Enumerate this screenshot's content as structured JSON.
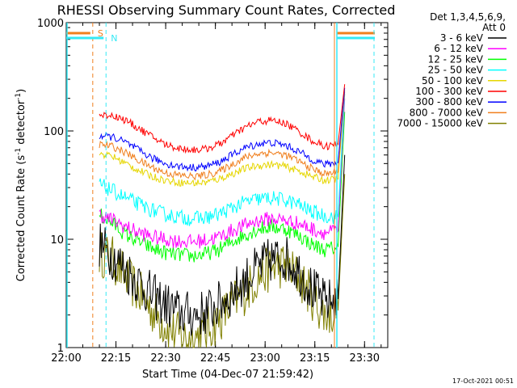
{
  "chart_data": {
    "type": "line",
    "title": "RHESSI Observing Summary Count Rates, Corrected",
    "xlabel": "Start Time (04-Dec-07 21:59:42)",
    "ylabel_main": "Corrected Count Rate (s",
    "ylabel_sup1": "-1",
    "ylabel_mid": " detector",
    "ylabel_sup2": "-1",
    "ylabel_end": ")",
    "yscale": "log",
    "ylim": [
      1,
      1000
    ],
    "xlim": [
      "22:00",
      "23:37"
    ],
    "x_ticks": [
      "22:00",
      "22:15",
      "22:30",
      "22:45",
      "23:00",
      "23:15",
      "23:30"
    ],
    "y_ticks": [
      "1",
      "10",
      "100",
      "1000"
    ],
    "legend_header_1": "Det 1,3,4,5,6,9,",
    "legend_header_2": "Att 0",
    "legend_position": "top-right",
    "footer_timestamp": "17-Oct-2021 00:51",
    "markers": [
      {
        "label": "S",
        "time": "22:08",
        "color": "#f07f1d"
      },
      {
        "label": "N",
        "time": "22:12",
        "color": "#35e9f5"
      }
    ],
    "series": [
      {
        "name": "3 - 6 keV",
        "color": "#000000",
        "values": [
          {
            "x": "22:10",
            "y": 9
          },
          {
            "x": "22:14",
            "y": 7
          },
          {
            "x": "22:18",
            "y": 5.2
          },
          {
            "x": "22:22",
            "y": 4
          },
          {
            "x": "22:26",
            "y": 3
          },
          {
            "x": "22:30",
            "y": 2.5
          },
          {
            "x": "22:34",
            "y": 2.1
          },
          {
            "x": "22:38",
            "y": 2
          },
          {
            "x": "22:42",
            "y": 2.1
          },
          {
            "x": "22:46",
            "y": 2.5
          },
          {
            "x": "22:50",
            "y": 3.2
          },
          {
            "x": "22:54",
            "y": 4.2
          },
          {
            "x": "22:58",
            "y": 5.5
          },
          {
            "x": "23:02",
            "y": 6.5
          },
          {
            "x": "23:06",
            "y": 6.8
          },
          {
            "x": "23:10",
            "y": 5.2
          },
          {
            "x": "23:14",
            "y": 3.5
          },
          {
            "x": "23:18",
            "y": 2.6
          },
          {
            "x": "23:22",
            "y": 2.8
          },
          {
            "x": "23:24",
            "y": 60
          }
        ]
      },
      {
        "name": "6 - 12 keV",
        "color": "#ff00ff",
        "values": [
          {
            "x": "22:10",
            "y": 17
          },
          {
            "x": "22:14",
            "y": 15
          },
          {
            "x": "22:18",
            "y": 13
          },
          {
            "x": "22:22",
            "y": 11.5
          },
          {
            "x": "22:26",
            "y": 10.5
          },
          {
            "x": "22:30",
            "y": 10
          },
          {
            "x": "22:34",
            "y": 9.6
          },
          {
            "x": "22:38",
            "y": 9.5
          },
          {
            "x": "22:42",
            "y": 9.8
          },
          {
            "x": "22:46",
            "y": 10.5
          },
          {
            "x": "22:50",
            "y": 12
          },
          {
            "x": "22:54",
            "y": 13.5
          },
          {
            "x": "22:58",
            "y": 15
          },
          {
            "x": "23:02",
            "y": 15.5
          },
          {
            "x": "23:06",
            "y": 15
          },
          {
            "x": "23:10",
            "y": 14
          },
          {
            "x": "23:14",
            "y": 12.5
          },
          {
            "x": "23:18",
            "y": 11.5
          },
          {
            "x": "23:22",
            "y": 12
          },
          {
            "x": "23:24",
            "y": 200
          }
        ]
      },
      {
        "name": "12 - 25 keV",
        "color": "#00ff00",
        "values": [
          {
            "x": "22:10",
            "y": 17
          },
          {
            "x": "22:14",
            "y": 14
          },
          {
            "x": "22:18",
            "y": 11
          },
          {
            "x": "22:22",
            "y": 9.5
          },
          {
            "x": "22:26",
            "y": 8.2
          },
          {
            "x": "22:30",
            "y": 7.5
          },
          {
            "x": "22:34",
            "y": 7.2
          },
          {
            "x": "22:38",
            "y": 7
          },
          {
            "x": "22:42",
            "y": 7.3
          },
          {
            "x": "22:46",
            "y": 8
          },
          {
            "x": "22:50",
            "y": 9.5
          },
          {
            "x": "22:54",
            "y": 11
          },
          {
            "x": "22:58",
            "y": 12.5
          },
          {
            "x": "23:02",
            "y": 13
          },
          {
            "x": "23:06",
            "y": 12.5
          },
          {
            "x": "23:10",
            "y": 11
          },
          {
            "x": "23:14",
            "y": 9
          },
          {
            "x": "23:18",
            "y": 8
          },
          {
            "x": "23:22",
            "y": 8.5
          },
          {
            "x": "23:24",
            "y": 150
          }
        ]
      },
      {
        "name": "25 - 50 keV",
        "color": "#00ffff",
        "values": [
          {
            "x": "22:10",
            "y": 32
          },
          {
            "x": "22:14",
            "y": 28
          },
          {
            "x": "22:18",
            "y": 24
          },
          {
            "x": "22:22",
            "y": 21
          },
          {
            "x": "22:26",
            "y": 18.5
          },
          {
            "x": "22:30",
            "y": 17
          },
          {
            "x": "22:34",
            "y": 16
          },
          {
            "x": "22:38",
            "y": 15.5
          },
          {
            "x": "22:42",
            "y": 15.8
          },
          {
            "x": "22:46",
            "y": 17
          },
          {
            "x": "22:50",
            "y": 19.5
          },
          {
            "x": "22:54",
            "y": 22
          },
          {
            "x": "22:58",
            "y": 23.5
          },
          {
            "x": "23:02",
            "y": 24
          },
          {
            "x": "23:06",
            "y": 23
          },
          {
            "x": "23:10",
            "y": 21
          },
          {
            "x": "23:14",
            "y": 18
          },
          {
            "x": "23:18",
            "y": 16.5
          },
          {
            "x": "23:22",
            "y": 16
          },
          {
            "x": "23:24",
            "y": 220
          }
        ]
      },
      {
        "name": "50 - 100 keV",
        "color": "#e6d600",
        "values": [
          {
            "x": "22:10",
            "y": 62
          },
          {
            "x": "22:14",
            "y": 58
          },
          {
            "x": "22:18",
            "y": 50
          },
          {
            "x": "22:22",
            "y": 43
          },
          {
            "x": "22:26",
            "y": 38
          },
          {
            "x": "22:30",
            "y": 35
          },
          {
            "x": "22:34",
            "y": 33.5
          },
          {
            "x": "22:38",
            "y": 33
          },
          {
            "x": "22:42",
            "y": 33.5
          },
          {
            "x": "22:46",
            "y": 36
          },
          {
            "x": "22:50",
            "y": 40
          },
          {
            "x": "22:54",
            "y": 45
          },
          {
            "x": "22:58",
            "y": 48
          },
          {
            "x": "23:02",
            "y": 49
          },
          {
            "x": "23:06",
            "y": 47
          },
          {
            "x": "23:10",
            "y": 43
          },
          {
            "x": "23:14",
            "y": 38
          },
          {
            "x": "23:18",
            "y": 35
          },
          {
            "x": "23:22",
            "y": 36
          },
          {
            "x": "23:24",
            "y": 240
          }
        ]
      },
      {
        "name": "100 - 300 keV",
        "color": "#ff0000",
        "values": [
          {
            "x": "22:10",
            "y": 140
          },
          {
            "x": "22:14",
            "y": 140
          },
          {
            "x": "22:18",
            "y": 125
          },
          {
            "x": "22:22",
            "y": 105
          },
          {
            "x": "22:26",
            "y": 88
          },
          {
            "x": "22:30",
            "y": 75
          },
          {
            "x": "22:34",
            "y": 69
          },
          {
            "x": "22:38",
            "y": 67
          },
          {
            "x": "22:42",
            "y": 68
          },
          {
            "x": "22:46",
            "y": 75
          },
          {
            "x": "22:50",
            "y": 90
          },
          {
            "x": "22:54",
            "y": 108
          },
          {
            "x": "22:58",
            "y": 122
          },
          {
            "x": "23:02",
            "y": 125
          },
          {
            "x": "23:06",
            "y": 118
          },
          {
            "x": "23:10",
            "y": 100
          },
          {
            "x": "23:14",
            "y": 82
          },
          {
            "x": "23:18",
            "y": 72
          },
          {
            "x": "23:22",
            "y": 75
          },
          {
            "x": "23:24",
            "y": 270
          }
        ]
      },
      {
        "name": "300 - 800 keV",
        "color": "#0000ff",
        "values": [
          {
            "x": "22:10",
            "y": 90
          },
          {
            "x": "22:14",
            "y": 88
          },
          {
            "x": "22:18",
            "y": 78
          },
          {
            "x": "22:22",
            "y": 66
          },
          {
            "x": "22:26",
            "y": 56
          },
          {
            "x": "22:30",
            "y": 50
          },
          {
            "x": "22:34",
            "y": 47
          },
          {
            "x": "22:38",
            "y": 46
          },
          {
            "x": "22:42",
            "y": 47
          },
          {
            "x": "22:46",
            "y": 51
          },
          {
            "x": "22:50",
            "y": 60
          },
          {
            "x": "22:54",
            "y": 70
          },
          {
            "x": "22:58",
            "y": 76
          },
          {
            "x": "23:02",
            "y": 78
          },
          {
            "x": "23:06",
            "y": 74
          },
          {
            "x": "23:10",
            "y": 65
          },
          {
            "x": "23:14",
            "y": 55
          },
          {
            "x": "23:18",
            "y": 49
          },
          {
            "x": "23:22",
            "y": 51
          },
          {
            "x": "23:24",
            "y": 250
          }
        ]
      },
      {
        "name": "800 - 7000 keV",
        "color": "#f07f1d",
        "values": [
          {
            "x": "22:10",
            "y": 75
          },
          {
            "x": "22:14",
            "y": 72
          },
          {
            "x": "22:18",
            "y": 63
          },
          {
            "x": "22:22",
            "y": 53
          },
          {
            "x": "22:26",
            "y": 46
          },
          {
            "x": "22:30",
            "y": 41
          },
          {
            "x": "22:34",
            "y": 39
          },
          {
            "x": "22:38",
            "y": 38
          },
          {
            "x": "22:42",
            "y": 39
          },
          {
            "x": "22:46",
            "y": 42
          },
          {
            "x": "22:50",
            "y": 49
          },
          {
            "x": "22:54",
            "y": 57
          },
          {
            "x": "22:58",
            "y": 62
          },
          {
            "x": "23:02",
            "y": 63
          },
          {
            "x": "23:06",
            "y": 60
          },
          {
            "x": "23:10",
            "y": 53
          },
          {
            "x": "23:14",
            "y": 45
          },
          {
            "x": "23:18",
            "y": 40
          },
          {
            "x": "23:22",
            "y": 42
          },
          {
            "x": "23:24",
            "y": 230
          }
        ]
      },
      {
        "name": "7000 - 15000 keV",
        "color": "#808000",
        "values": [
          {
            "x": "22:10",
            "y": 7.5
          },
          {
            "x": "22:14",
            "y": 6.5
          },
          {
            "x": "22:18",
            "y": 4.5
          },
          {
            "x": "22:22",
            "y": 3.2
          },
          {
            "x": "22:26",
            "y": 2.2
          },
          {
            "x": "22:30",
            "y": 1.6
          },
          {
            "x": "22:34",
            "y": 1.3
          },
          {
            "x": "22:38",
            "y": 1.2
          },
          {
            "x": "22:42",
            "y": 1.4
          },
          {
            "x": "22:46",
            "y": 1.8
          },
          {
            "x": "22:50",
            "y": 2.5
          },
          {
            "x": "22:54",
            "y": 3.3
          },
          {
            "x": "22:58",
            "y": 4.5
          },
          {
            "x": "23:02",
            "y": 5.5
          },
          {
            "x": "23:06",
            "y": 5.8
          },
          {
            "x": "23:10",
            "y": 4.5
          },
          {
            "x": "23:14",
            "y": 3
          },
          {
            "x": "23:18",
            "y": 2
          },
          {
            "x": "23:22",
            "y": 2.2
          },
          {
            "x": "23:24",
            "y": 40
          }
        ]
      }
    ]
  }
}
